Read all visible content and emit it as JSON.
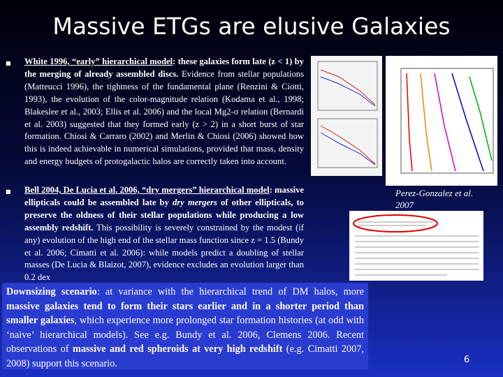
{
  "slide": {
    "title": "Massive ETGs are elusive Galaxies",
    "bullets": [
      {
        "segments": [
          "White 1996, “early” hierarchical model",
          ": these galaxies form late (z < 1) by the merging of already assembled discs.",
          " Evidence from stellar populations (Matteucci 1996), the tightness of the fundamental plane (Renzini & Ciotti, 1993), the evolution of the color-magnitude relation (Kodama et al., 1998; Blakeslee et al., 2003; Ellis et al. 2006) and the local Mg2-σ relation (Bernardi et al. 2003) suggested that they formed early (z > 2) in a short burst of star formation. Chiosi & Carraro (2002) and Merlin & Chiosi (2006) showed how this is indeed achievable in numerical simulations, provided that  mass, density and energy budgets of protogalactic halos are correctly taken into account."
        ]
      },
      {
        "segments": [
          "Bell 2004, De Lucia et al. 2006, “dry mergers” hierarchical model",
          ": massive ellipticals could be assembled late by ",
          "dry mergers",
          " of other ellipticals, to preserve the oldness of their stellar populations while producing a low assembly redshift.",
          " This possibility is severely constrained by the modest (if any) evolution of the high end of the stellar mass function since z = 1.5 (Bundy et al. 2006; Cimatti et al. 2006): while models predict a doubling of stellar masses (De Lucia & Blaizot, 2007), evidence excludes an evolution larger than 0.2 dex"
        ]
      }
    ],
    "figure_caption": "Perez-Gonzalez et al. 2007",
    "box": {
      "segments": [
        "Downsizing scenario",
        ": at variance with the hierarchical trend of DM halos, more ",
        "massive galaxies tend to form their stars earlier and in a shorter period than smaller galaxies",
        ", which experience more prolonged star formation histories (at odd with ‘naive’ hierarchical models). See e.g. Bundy et al. 2006, Clemens 2006. Recent observations of ",
        "massive and red spheroids at very high redshift",
        " (e.g. Cimatti 2007, 2008) support this scenario."
      ]
    },
    "page_number": "6"
  }
}
